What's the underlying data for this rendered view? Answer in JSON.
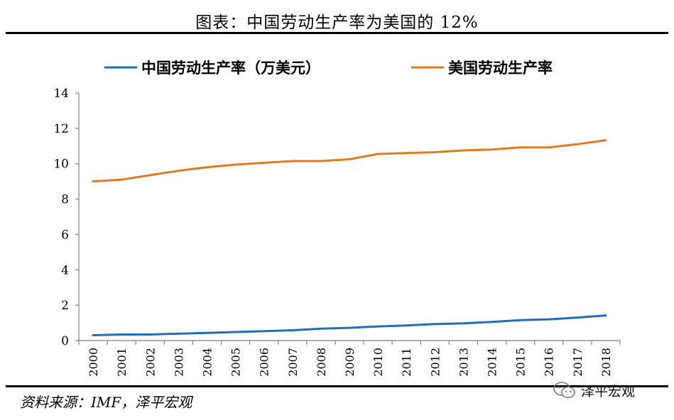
{
  "chart_data": {
    "type": "line",
    "title": "图表：中国劳动生产率为美国的 12%",
    "xlabel": "",
    "ylabel": "",
    "ylim": [
      0,
      14
    ],
    "yticks": [
      0,
      2,
      4,
      6,
      8,
      10,
      12,
      14
    ],
    "x": [
      "2000",
      "2001",
      "2002",
      "2003",
      "2004",
      "2005",
      "2006",
      "2007",
      "2008",
      "2009",
      "2010",
      "2011",
      "2012",
      "2013",
      "2014",
      "2015",
      "2016",
      "2017",
      "2018"
    ],
    "series": [
      {
        "name": "中国劳动生产率（万美元）",
        "color": "#1f6fb8",
        "values": [
          0.3,
          0.34,
          0.34,
          0.39,
          0.43,
          0.48,
          0.53,
          0.58,
          0.67,
          0.72,
          0.8,
          0.85,
          0.93,
          0.97,
          1.05,
          1.15,
          1.2,
          1.3,
          1.42
        ]
      },
      {
        "name": "美国劳动生产率",
        "color": "#e07b20",
        "values": [
          9.0,
          9.1,
          9.35,
          9.6,
          9.8,
          9.95,
          10.05,
          10.15,
          10.15,
          10.25,
          10.55,
          10.6,
          10.65,
          10.75,
          10.8,
          10.92,
          10.92,
          11.1,
          11.33
        ]
      }
    ],
    "legend": "top",
    "grid": false
  },
  "source": "资料来源：IMF，泽平宏观",
  "watermark": {
    "text": "泽平宏观",
    "icon": "wechat-icon"
  }
}
